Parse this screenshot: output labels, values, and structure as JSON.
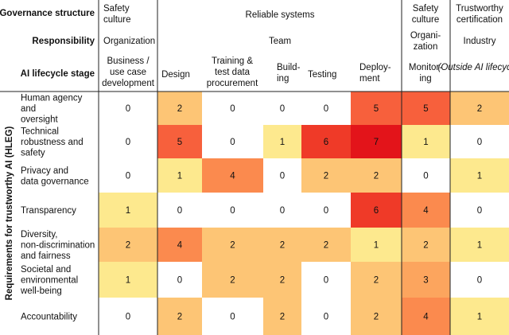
{
  "chart_data": {
    "type": "heatmap",
    "header_rows": {
      "governance_structure": {
        "label": "Governance structure",
        "groups": [
          "Safety culture",
          "Reliable systems",
          "Safety culture",
          "Trustworthy certification"
        ]
      },
      "responsibility": {
        "label": "Responsibility",
        "groups": [
          "Organization",
          "Team",
          "Organi-zation",
          "Industry"
        ]
      },
      "ai_lifecycle_stage": {
        "label": "AI lifecycle stage"
      }
    },
    "columns": [
      "Business / use case development",
      "Design",
      "Training & test data procurement",
      "Build-ing",
      "Testing",
      "Deploy-ment",
      "Monitor-ing",
      "(Outside AI lifecycle)"
    ],
    "row_axis_label": "Requirements for trustworthy AI (HLEG)",
    "rows": [
      "Human agency and oversight",
      "Technical robustness and safety",
      "Privacy and data governance",
      "Transparency",
      "Diversity, non-discrimination and fairness",
      "Societal and environmental well-being",
      "Accountability"
    ],
    "values": [
      [
        0,
        2,
        0,
        0,
        0,
        5,
        5,
        2
      ],
      [
        0,
        5,
        0,
        1,
        6,
        7,
        1,
        0
      ],
      [
        0,
        1,
        4,
        0,
        2,
        2,
        0,
        1
      ],
      [
        1,
        0,
        0,
        0,
        0,
        6,
        4,
        0
      ],
      [
        2,
        4,
        2,
        2,
        2,
        1,
        2,
        1
      ],
      [
        1,
        0,
        2,
        2,
        0,
        2,
        3,
        0
      ],
      [
        0,
        2,
        0,
        2,
        0,
        2,
        4,
        1
      ]
    ],
    "color_scale": {
      "0": "#ffffff",
      "1": "#fde98e",
      "2": "#fdc575",
      "3": "#fca55e",
      "4": "#fb8a4e",
      "5": "#f7603c",
      "6": "#ef3a28",
      "7": "#e3141a"
    },
    "grid": false
  }
}
